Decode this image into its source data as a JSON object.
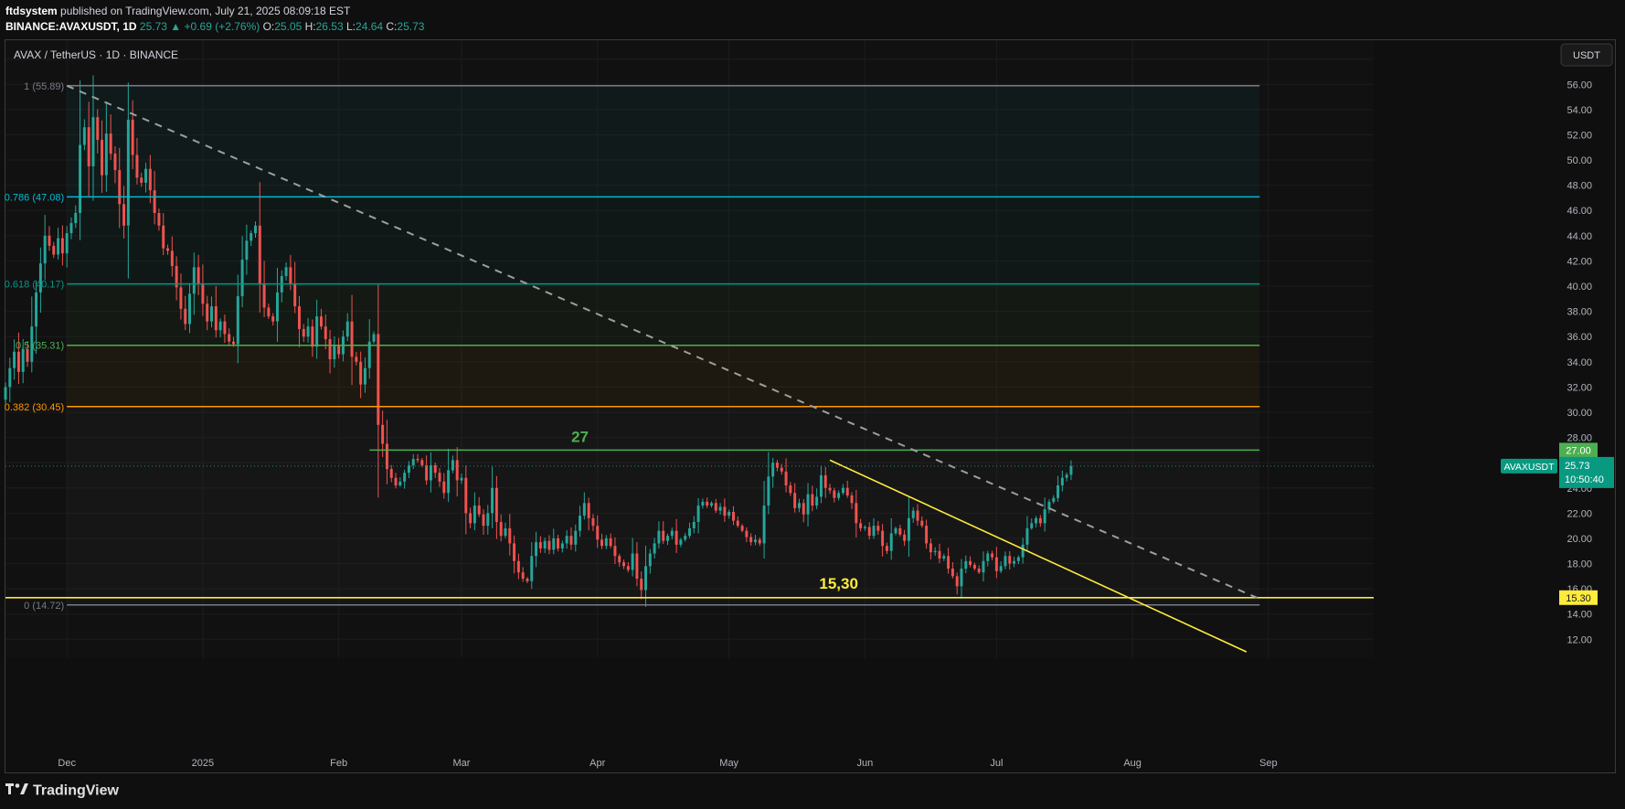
{
  "header": {
    "publisher": "ftdsystem",
    "published_text": "published on TradingView.com, July 21, 2025 08:09:18 EST",
    "symbol_line": "BINANCE:AVAXUSDT, 1D",
    "last": "25.73",
    "change": "▲ +0.69 (+2.76%)",
    "open_label": "O:",
    "open": "25.05",
    "high_label": "H:",
    "high": "26.53",
    "low_label": "L:",
    "low": "24.64",
    "close_label": "C:",
    "close": "25.73"
  },
  "footer": {
    "brand": "TradingView"
  },
  "chart_data": {
    "type": "candlestick",
    "title": "AVAX / TetherUS · 1D · BINANCE",
    "currency_button": "USDT",
    "ylim": [
      10.5,
      59.5
    ],
    "y_ticks": [
      12,
      14,
      16,
      18,
      20,
      22,
      24,
      26,
      28,
      30,
      32,
      34,
      36,
      38,
      40,
      42,
      44,
      46,
      48,
      50,
      52,
      54,
      56,
      58
    ],
    "x_ticks": [
      "Dec",
      "2025",
      "Feb",
      "Mar",
      "Apr",
      "May",
      "Jun",
      "Jul",
      "Aug",
      "Sep"
    ],
    "x_tick_dates": [
      "2024-12-01",
      "2025-01-01",
      "2025-02-01",
      "2025-03-01",
      "2025-04-01",
      "2025-05-01",
      "2025-06-01",
      "2025-07-01",
      "2025-08-01",
      "2025-09-01"
    ],
    "date_range": [
      "2024-11-17",
      "2025-09-25"
    ],
    "grid": true,
    "fib_levels": [
      {
        "ratio": "1",
        "value": 55.89,
        "label": "1 (55.89)",
        "color": "#787b86"
      },
      {
        "ratio": "0.786",
        "value": 47.08,
        "label": "0.786 (47.08)",
        "color": "#00bcd4"
      },
      {
        "ratio": "0.618",
        "value": 40.17,
        "label": "0.618 (40.17)",
        "color": "#009688"
      },
      {
        "ratio": "0.5",
        "value": 35.31,
        "label": "0.5 (35.31)",
        "color": "#4caf50"
      },
      {
        "ratio": "0.382",
        "value": 30.45,
        "label": "0.382 (30.45)",
        "color": "#ff9800"
      },
      {
        "ratio": "0",
        "value": 14.72,
        "label": "0 (14.72)",
        "color": "#787b86"
      }
    ],
    "fib_start": "2024-12-01",
    "fib_end": "2025-08-30",
    "horizontal_lines": [
      {
        "value": 27.0,
        "start": "2025-02-08",
        "end": "2025-08-30",
        "color": "#4caf50",
        "annotation": "27",
        "price_label": "27.00"
      },
      {
        "value": 15.3,
        "start": "2024-11-17",
        "end": "2025-09-25",
        "color": "#ffeb3b",
        "annotation": "15,30",
        "price_label": "15.30"
      }
    ],
    "trendlines": [
      {
        "name": "descending-dashed",
        "from": [
          "2024-12-01",
          55.89
        ],
        "to": [
          "2025-08-30",
          15.2
        ],
        "color": "#9e9e9e",
        "dashed": true
      },
      {
        "name": "yellow-down",
        "from": [
          "2025-05-24",
          26.2
        ],
        "to": [
          "2025-08-27",
          11.0
        ],
        "color": "#ffeb3b",
        "dashed": false
      }
    ],
    "last_price": {
      "value": 25.73,
      "symbol": "AVAXUSDT",
      "price": "25.73",
      "countdown": "10:50:40",
      "color": "#089981"
    },
    "series": [
      {
        "name": "AVAXUSDT",
        "start_date": "2024-11-17",
        "close": [
          32.0,
          33.5,
          34.8,
          33.2,
          35.0,
          34.0,
          36.8,
          39.5,
          41.8,
          44.0,
          43.2,
          42.5,
          43.8,
          42.6,
          44.2,
          45.0,
          45.8,
          51.2,
          52.6,
          49.5,
          53.4,
          51.6,
          48.8,
          52.1,
          50.5,
          49.2,
          46.5,
          44.8,
          53.2,
          50.4,
          48.6,
          48.2,
          49.3,
          47.6,
          45.8,
          44.8,
          43.0,
          42.8,
          41.6,
          39.9,
          38.2,
          37.0,
          39.4,
          41.5,
          40.2,
          38.6,
          37.2,
          38.4,
          36.5,
          37.2,
          36.2,
          35.6,
          35.4,
          39.2,
          42.1,
          43.6,
          44.2,
          44.8,
          40.2,
          38.3,
          37.6,
          37.2,
          39.5,
          40.8,
          41.5,
          40.2,
          38.4,
          36.6,
          36.0,
          36.8,
          35.2,
          37.6,
          36.8,
          35.8,
          34.2,
          35.3,
          34.6,
          36.0,
          37.2,
          34.4,
          34.0,
          32.2,
          33.5,
          35.6,
          36.2,
          29.0,
          27.5,
          25.5,
          24.8,
          24.2,
          24.5,
          25.2,
          25.8,
          26.3,
          26.2,
          25.8,
          24.6,
          25.8,
          25.2,
          24.5,
          23.6,
          25.4,
          26.2,
          24.6,
          24.8,
          22.0,
          21.2,
          22.6,
          21.9,
          21.0,
          22.0,
          24.0,
          21.3,
          20.2,
          20.8,
          19.6,
          18.2,
          17.3,
          16.8,
          16.6,
          18.6,
          19.7,
          19.2,
          19.8,
          19.1,
          20.0,
          19.2,
          19.6,
          20.2,
          19.5,
          20.6,
          21.8,
          22.8,
          21.6,
          21.0,
          19.9,
          19.4,
          20.0,
          19.4,
          18.6,
          18.1,
          17.8,
          17.5,
          18.8,
          16.8,
          15.9,
          17.8,
          18.8,
          19.6,
          20.6,
          19.8,
          20.2,
          20.6,
          19.5,
          19.9,
          20.2,
          20.8,
          21.3,
          22.6,
          22.9,
          22.6,
          22.8,
          22.2,
          22.5,
          21.8,
          22.1,
          21.4,
          21.0,
          20.6,
          20.1,
          19.7,
          19.9,
          19.6,
          22.6,
          24.9,
          26.0,
          25.6,
          25.3,
          24.2,
          23.6,
          22.4,
          22.8,
          21.9,
          23.5,
          22.6,
          23.3,
          25.0,
          24.0,
          23.8,
          23.2,
          23.6,
          24.0,
          23.4,
          22.8,
          21.2,
          20.8,
          20.9,
          20.2,
          21.0,
          20.6,
          19.4,
          19.0,
          20.4,
          20.8,
          20.3,
          19.8,
          21.6,
          22.2,
          21.4,
          21.0,
          19.6,
          18.9,
          19.0,
          18.4,
          18.6,
          17.6,
          17.0,
          16.2,
          17.6,
          18.2,
          17.9,
          17.6,
          17.3,
          18.2,
          18.8,
          18.5,
          17.4,
          17.8,
          18.6,
          18.0,
          18.2,
          18.5,
          19.5,
          20.8,
          21.2,
          21.6,
          21.2,
          22.3,
          22.9,
          23.2,
          24.2,
          24.8,
          25.04,
          25.73
        ],
        "open_first": 31.0
      }
    ]
  }
}
